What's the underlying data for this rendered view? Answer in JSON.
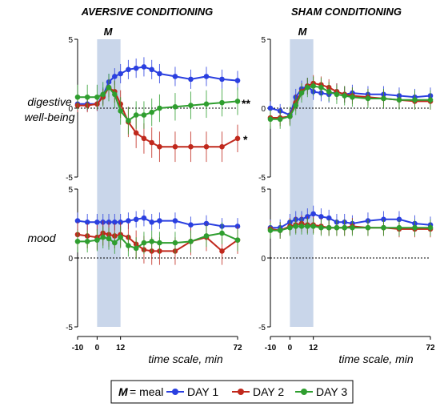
{
  "colors": {
    "day1": "#2a3fe0",
    "day2": "#c0281c",
    "day3": "#2f9e2f",
    "meal_band": "#c9d6ea",
    "axis": "#000000"
  },
  "panels": [
    {
      "id": "aversive",
      "title": "AVERSIVE CONDITIONING"
    },
    {
      "id": "sham",
      "title": "SHAM CONDITIONING"
    }
  ],
  "row_labels": {
    "digestive_line1": "digestive",
    "digestive_line2": "well-being",
    "mood": "mood"
  },
  "meal_marker": "M",
  "significance": {
    "day3": "**",
    "day2": "*"
  },
  "x_axis": {
    "label": "time scale, min",
    "ticks": [
      -10,
      0,
      12,
      72
    ],
    "tick_labels": [
      "-10",
      "0",
      "12",
      "72"
    ],
    "range": [
      -10,
      72
    ]
  },
  "y_axis": {
    "range": [
      -5,
      5
    ],
    "ticks": [
      -5,
      0,
      5
    ],
    "tick_labels": [
      "-5",
      "0",
      "5"
    ]
  },
  "meal_interval": [
    0,
    12
  ],
  "legend": {
    "meal_key": "M",
    "meal_text": "= meal",
    "day1": "DAY 1",
    "day2": "DAY 2",
    "day3": "DAY 3"
  },
  "chart_data": [
    {
      "type": "line",
      "panel": "aversive",
      "row": "digestive well-being",
      "x": [
        -10,
        -5,
        0,
        3,
        6,
        9,
        12,
        16,
        20,
        24,
        28,
        32,
        40,
        48,
        56,
        64,
        72
      ],
      "series": [
        {
          "name": "DAY 1",
          "values": [
            0.3,
            0.3,
            0.3,
            0.9,
            1.9,
            2.3,
            2.5,
            2.8,
            2.9,
            3.0,
            2.8,
            2.5,
            2.3,
            2.1,
            2.3,
            2.1,
            2.0
          ],
          "error": [
            0.5,
            0.5,
            0.5,
            0.6,
            0.6,
            0.6,
            0.7,
            0.7,
            0.7,
            0.7,
            0.7,
            0.7,
            0.7,
            0.7,
            0.7,
            0.7,
            0.7
          ]
        },
        {
          "name": "DAY 2",
          "values": [
            0.2,
            0.2,
            0.3,
            0.8,
            1.5,
            1.2,
            0.3,
            -1.0,
            -1.8,
            -2.2,
            -2.5,
            -2.8,
            -2.8,
            -2.8,
            -2.8,
            -2.8,
            -2.2
          ],
          "error": [
            0.5,
            0.5,
            0.5,
            0.6,
            0.7,
            0.8,
            1.0,
            1.1,
            1.1,
            1.1,
            1.1,
            1.1,
            1.1,
            1.1,
            1.1,
            1.1,
            1.0
          ]
        },
        {
          "name": "DAY 3",
          "values": [
            0.8,
            0.8,
            0.8,
            1.0,
            1.5,
            1.0,
            -0.2,
            -0.9,
            -0.5,
            -0.5,
            -0.3,
            0.0,
            0.1,
            0.2,
            0.3,
            0.4,
            0.5
          ],
          "error": [
            0.9,
            0.9,
            0.9,
            0.9,
            1.0,
            1.0,
            1.0,
            1.0,
            1.0,
            1.0,
            1.0,
            1.0,
            1.0,
            1.0,
            1.0,
            1.0,
            1.0
          ]
        }
      ]
    },
    {
      "type": "line",
      "panel": "aversive",
      "row": "mood",
      "x": [
        -10,
        -5,
        0,
        3,
        6,
        9,
        12,
        16,
        20,
        24,
        28,
        32,
        40,
        48,
        56,
        64,
        72
      ],
      "series": [
        {
          "name": "DAY 1",
          "values": [
            2.7,
            2.6,
            2.6,
            2.6,
            2.6,
            2.6,
            2.6,
            2.7,
            2.8,
            2.9,
            2.6,
            2.7,
            2.7,
            2.4,
            2.5,
            2.3,
            2.3
          ],
          "error": [
            0.6,
            0.6,
            0.6,
            0.6,
            0.6,
            0.6,
            0.6,
            0.6,
            0.6,
            0.6,
            0.6,
            0.6,
            0.6,
            0.6,
            0.6,
            0.6,
            0.6
          ]
        },
        {
          "name": "DAY 2",
          "values": [
            1.7,
            1.6,
            1.5,
            1.8,
            1.7,
            1.6,
            1.7,
            1.5,
            1.0,
            0.6,
            0.5,
            0.5,
            0.5,
            1.2,
            1.5,
            0.5,
            1.3
          ],
          "error": [
            0.9,
            0.9,
            0.9,
            0.9,
            0.9,
            0.9,
            0.9,
            1.0,
            1.0,
            1.0,
            1.0,
            1.0,
            1.0,
            1.0,
            1.0,
            1.0,
            1.0
          ]
        },
        {
          "name": "DAY 3",
          "values": [
            1.2,
            1.2,
            1.3,
            1.5,
            1.4,
            1.1,
            1.5,
            0.9,
            0.7,
            1.1,
            1.2,
            1.1,
            1.1,
            1.2,
            1.6,
            1.8,
            1.3
          ],
          "error": [
            0.8,
            0.8,
            0.8,
            0.8,
            0.8,
            0.8,
            0.8,
            0.8,
            0.8,
            0.8,
            0.8,
            0.8,
            0.8,
            0.8,
            0.8,
            0.8,
            0.8
          ]
        }
      ]
    },
    {
      "type": "line",
      "panel": "sham",
      "row": "digestive well-being",
      "x": [
        -10,
        -5,
        0,
        3,
        6,
        9,
        12,
        16,
        20,
        24,
        28,
        32,
        40,
        48,
        56,
        64,
        72
      ],
      "series": [
        {
          "name": "DAY 1",
          "values": [
            0.0,
            -0.2,
            -0.5,
            0.8,
            1.4,
            1.6,
            1.2,
            1.1,
            1.0,
            1.2,
            1.0,
            1.1,
            1.0,
            1.0,
            0.9,
            0.8,
            0.9
          ],
          "error": [
            0.5,
            0.5,
            0.5,
            0.6,
            0.6,
            0.6,
            0.6,
            0.6,
            0.6,
            0.6,
            0.6,
            0.6,
            0.6,
            0.6,
            0.6,
            0.6,
            0.6
          ]
        },
        {
          "name": "DAY 2",
          "values": [
            -0.7,
            -0.7,
            -0.6,
            0.4,
            1.2,
            1.6,
            1.8,
            1.7,
            1.5,
            1.2,
            1.0,
            0.9,
            0.8,
            0.7,
            0.6,
            0.5,
            0.5
          ],
          "error": [
            0.6,
            0.6,
            0.6,
            0.6,
            0.6,
            0.6,
            0.6,
            0.6,
            0.6,
            0.6,
            0.6,
            0.6,
            0.6,
            0.6,
            0.6,
            0.6,
            0.6
          ]
        },
        {
          "name": "DAY 3",
          "values": [
            -0.8,
            -0.8,
            -0.6,
            0.2,
            1.1,
            1.5,
            1.6,
            1.5,
            1.2,
            1.0,
            0.9,
            0.8,
            0.7,
            0.7,
            0.6,
            0.6,
            0.6
          ],
          "error": [
            0.7,
            0.7,
            0.7,
            0.7,
            0.7,
            0.7,
            0.7,
            0.7,
            0.7,
            0.7,
            0.7,
            0.7,
            0.7,
            0.7,
            0.7,
            0.7,
            0.7
          ]
        }
      ]
    },
    {
      "type": "line",
      "panel": "sham",
      "row": "mood",
      "x": [
        -10,
        -5,
        0,
        3,
        6,
        9,
        12,
        16,
        20,
        24,
        28,
        32,
        40,
        48,
        56,
        64,
        72
      ],
      "series": [
        {
          "name": "DAY 1",
          "values": [
            2.2,
            2.2,
            2.6,
            2.8,
            2.8,
            3.0,
            3.2,
            3.0,
            2.9,
            2.6,
            2.6,
            2.5,
            2.7,
            2.8,
            2.8,
            2.5,
            2.4
          ],
          "error": [
            0.6,
            0.6,
            0.6,
            0.6,
            0.6,
            0.6,
            0.6,
            0.6,
            0.6,
            0.6,
            0.6,
            0.6,
            0.6,
            0.6,
            0.6,
            0.6,
            0.6
          ]
        },
        {
          "name": "DAY 2",
          "values": [
            2.1,
            2.0,
            2.3,
            2.4,
            2.5,
            2.4,
            2.4,
            2.3,
            2.2,
            2.2,
            2.2,
            2.3,
            2.2,
            2.2,
            2.1,
            2.1,
            2.1
          ],
          "error": [
            0.6,
            0.6,
            0.6,
            0.6,
            0.6,
            0.6,
            0.6,
            0.6,
            0.6,
            0.6,
            0.6,
            0.6,
            0.6,
            0.6,
            0.6,
            0.6,
            0.6
          ]
        },
        {
          "name": "DAY 3",
          "values": [
            2.0,
            2.0,
            2.2,
            2.3,
            2.3,
            2.3,
            2.3,
            2.2,
            2.2,
            2.2,
            2.2,
            2.2,
            2.2,
            2.2,
            2.2,
            2.2,
            2.2
          ],
          "error": [
            0.6,
            0.6,
            0.6,
            0.6,
            0.6,
            0.6,
            0.6,
            0.6,
            0.6,
            0.6,
            0.6,
            0.6,
            0.6,
            0.6,
            0.6,
            0.6,
            0.6
          ]
        }
      ]
    }
  ]
}
